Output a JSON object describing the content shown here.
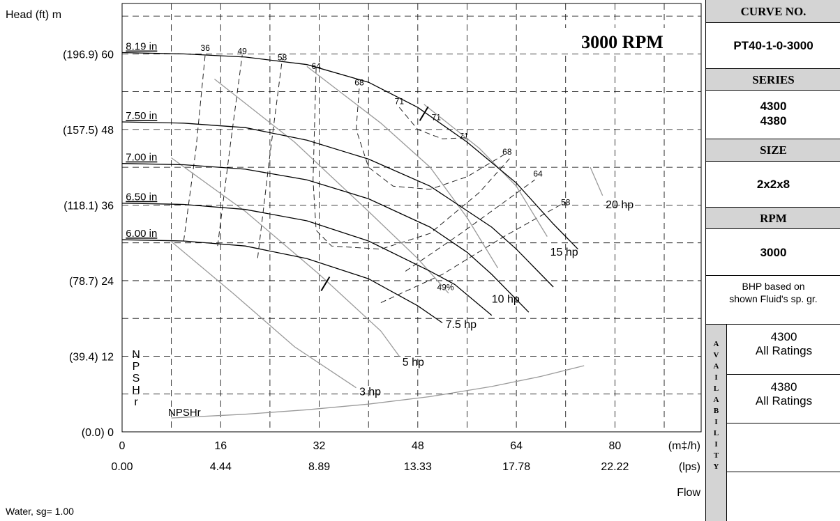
{
  "chart_data": {
    "type": "line",
    "title": "3000 RPM",
    "y_axis_label": "Head (ft)  m",
    "y_ticks": [
      {
        "m": 0,
        "label": "(0.0)  0"
      },
      {
        "m": 12,
        "label": "(39.4)  12"
      },
      {
        "m": 24,
        "label": "(78.7)  24"
      },
      {
        "m": 36,
        "label": "(118.1)  36"
      },
      {
        "m": 48,
        "label": "(157.5)  48"
      },
      {
        "m": 60,
        "label": "(196.9)  60"
      }
    ],
    "x_ticks_m3h": [
      0,
      16,
      32,
      48,
      64,
      80
    ],
    "x_ticks_lps": [
      "0.00",
      "4.44",
      "8.89",
      "13.33",
      "17.78",
      "22.22"
    ],
    "x_unit_m3h": "(m‡/h)",
    "x_unit_lps": "(lps)",
    "x_axis_label": "Flow",
    "xlim": [
      0,
      94
    ],
    "ylim": [
      0,
      68
    ],
    "grid": "dashed",
    "footnote": "Water, sg= 1.00",
    "npsh_side_label": [
      "N",
      "P",
      "S",
      "H",
      "r"
    ],
    "impeller_curves": [
      {
        "label": "8.19 in",
        "points": [
          [
            0,
            60.2
          ],
          [
            10,
            60
          ],
          [
            20,
            59.5
          ],
          [
            30,
            58.3
          ],
          [
            40,
            55.5
          ],
          [
            48,
            51.5
          ],
          [
            56,
            46
          ],
          [
            64,
            39.5
          ],
          [
            70,
            33
          ],
          [
            74,
            29
          ]
        ]
      },
      {
        "label": "7.50 in",
        "points": [
          [
            0,
            49.2
          ],
          [
            10,
            49
          ],
          [
            20,
            48.3
          ],
          [
            30,
            46.3
          ],
          [
            40,
            43.3
          ],
          [
            50,
            39
          ],
          [
            60,
            32.5
          ],
          [
            64,
            29
          ],
          [
            70,
            23
          ]
        ]
      },
      {
        "label": "7.00 in",
        "points": [
          [
            0,
            42.6
          ],
          [
            10,
            42.4
          ],
          [
            20,
            41.7
          ],
          [
            30,
            40
          ],
          [
            40,
            37
          ],
          [
            50,
            32.5
          ],
          [
            56,
            28.5
          ],
          [
            60,
            25
          ],
          [
            66,
            19
          ]
        ]
      },
      {
        "label": "6.50 in",
        "points": [
          [
            0,
            36.3
          ],
          [
            10,
            36.1
          ],
          [
            20,
            35.3
          ],
          [
            30,
            33.5
          ],
          [
            40,
            30.3
          ],
          [
            50,
            25.5
          ],
          [
            54,
            23.4
          ],
          [
            60,
            18.5
          ]
        ]
      },
      {
        "label": "6.00 in",
        "points": [
          [
            0,
            30.5
          ],
          [
            10,
            30.3
          ],
          [
            20,
            29.5
          ],
          [
            30,
            27.5
          ],
          [
            40,
            24.3
          ],
          [
            48,
            20
          ],
          [
            52,
            17.3
          ]
        ]
      }
    ],
    "efficiency_labels": [
      {
        "label": "36",
        "x": 13.5,
        "y": 60.5
      },
      {
        "label": "49",
        "x": 19.5,
        "y": 60
      },
      {
        "label": "58",
        "x": 26,
        "y": 59
      },
      {
        "label": "64",
        "x": 31.5,
        "y": 57.6
      },
      {
        "label": "68",
        "x": 38.5,
        "y": 55
      },
      {
        "label": "71",
        "x": 45,
        "y": 52
      },
      {
        "label": "71",
        "x": 51,
        "y": 49.5
      },
      {
        "label": "71",
        "x": 55.5,
        "y": 46.5
      },
      {
        "label": "68",
        "x": 62.5,
        "y": 44
      },
      {
        "label": "64",
        "x": 67.5,
        "y": 40.5
      },
      {
        "label": "58",
        "x": 72,
        "y": 36
      },
      {
        "label": "49%",
        "x": 52.5,
        "y": 22.5
      }
    ],
    "efficiency_curves": [
      {
        "label": "36",
        "points": [
          [
            10,
            30.3
          ],
          [
            12,
            45
          ],
          [
            13.5,
            60
          ]
        ]
      },
      {
        "label": "49",
        "points": [
          [
            15.5,
            29.5
          ],
          [
            17.5,
            45
          ],
          [
            19.5,
            59.8
          ]
        ]
      },
      {
        "label": "58",
        "points": [
          [
            22,
            27.6
          ],
          [
            24,
            44
          ],
          [
            26,
            59.2
          ]
        ]
      },
      {
        "label": "64",
        "points": [
          [
            31.5,
            57.8
          ],
          [
            31,
            40
          ],
          [
            31.5,
            32
          ],
          [
            34,
            29.5
          ],
          [
            42,
            29
          ],
          [
            50,
            31.5
          ],
          [
            58,
            38
          ],
          [
            63,
            43.5
          ]
        ]
      },
      {
        "label": "68",
        "points": [
          [
            38.5,
            54.5
          ],
          [
            38,
            48
          ],
          [
            40,
            42
          ],
          [
            44,
            39
          ],
          [
            50,
            38.5
          ],
          [
            56,
            40.5
          ],
          [
            62,
            44
          ]
        ]
      },
      {
        "label": "71",
        "points": [
          [
            45,
            51.5
          ],
          [
            48,
            48
          ],
          [
            52,
            46.5
          ],
          [
            56,
            46.7
          ]
        ]
      },
      {
        "label": "58",
        "points": [
          [
            42,
            20.5
          ],
          [
            52,
            25
          ],
          [
            62,
            31
          ],
          [
            72,
            36.5
          ]
        ]
      },
      {
        "label": "64",
        "points": [
          [
            46,
            25.5
          ],
          [
            55,
            31.5
          ],
          [
            67,
            40
          ]
        ]
      }
    ],
    "bep_marks": [
      [
        49,
        50.5
      ],
      [
        33,
        23.5
      ]
    ],
    "power_curves": [
      {
        "label": "3 hp",
        "points": [
          [
            8,
            30.2
          ],
          [
            18,
            22
          ],
          [
            28,
            13.5
          ],
          [
            38,
            7
          ]
        ],
        "label_at": [
          38.5,
          5.8
        ]
      },
      {
        "label": "5 hp",
        "points": [
          [
            8,
            43.5
          ],
          [
            20,
            35
          ],
          [
            32,
            25
          ],
          [
            42,
            16
          ],
          [
            45,
            12
          ]
        ],
        "label_at": [
          45.5,
          10.5
        ]
      },
      {
        "label": "7.5 hp",
        "points": [
          [
            15,
            56
          ],
          [
            28,
            46
          ],
          [
            40,
            35
          ],
          [
            48,
            27.5
          ],
          [
            53,
            22
          ]
        ],
        "label_at": [
          52.5,
          16.5
        ]
      },
      {
        "label": "10 hp",
        "points": [
          [
            30,
            58
          ],
          [
            42,
            49
          ],
          [
            50,
            42
          ],
          [
            56,
            34
          ],
          [
            61,
            26
          ]
        ],
        "label_at": [
          60,
          20.5
        ]
      },
      {
        "label": "15 hp",
        "points": [
          [
            49,
            52
          ],
          [
            58,
            45
          ],
          [
            64,
            39
          ],
          [
            69,
            31
          ]
        ],
        "label_at": [
          69.5,
          28
        ]
      },
      {
        "label": "20 hp",
        "points": [
          [
            76,
            42
          ],
          [
            78,
            37.5
          ]
        ],
        "label_at": [
          78.5,
          35.5
        ]
      }
    ],
    "npshr": {
      "label": "NPSHr",
      "points": [
        [
          8,
          2.2
        ],
        [
          20,
          2.8
        ],
        [
          30,
          3.5
        ],
        [
          40,
          4.4
        ],
        [
          50,
          5.6
        ],
        [
          60,
          7.2
        ],
        [
          68,
          8.8
        ],
        [
          75,
          10.5
        ]
      ]
    }
  },
  "panel": {
    "curve_no_label": "CURVE NO.",
    "curve_no_value": "PT40-1-0-3000",
    "series_label": "SERIES",
    "series_value_1": "4300",
    "series_value_2": "4380",
    "size_label": "SIZE",
    "size_value": "2x2x8",
    "rpm_label": "RPM",
    "rpm_value": "3000",
    "bhp_note_1": "BHP based on",
    "bhp_note_2": "shown Fluid's sp. gr.",
    "availability_letters": [
      "A",
      "V",
      "A",
      "I",
      "L",
      "A",
      "B",
      "I",
      "L",
      "I",
      "T",
      "Y"
    ],
    "rating_1_series": "4300",
    "rating_1_text": "All Ratings",
    "rating_2_series": "4380",
    "rating_2_text": "All Ratings"
  }
}
